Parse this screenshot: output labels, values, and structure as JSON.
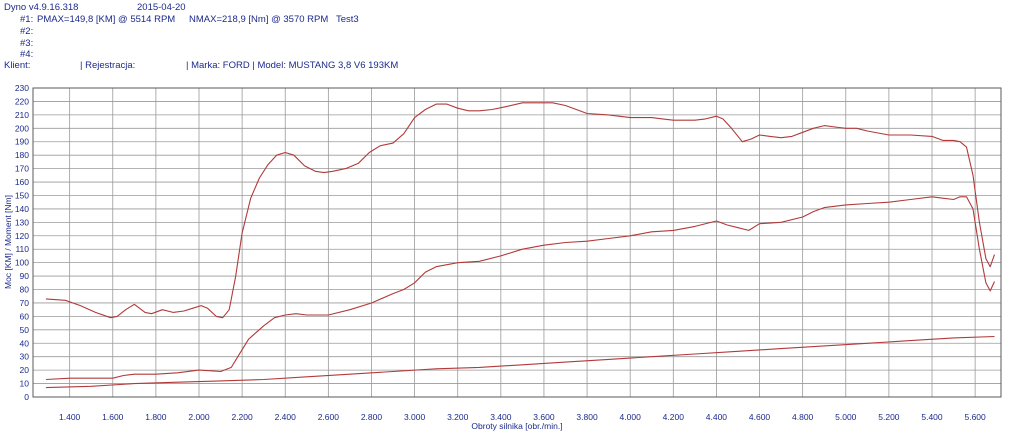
{
  "header": {
    "app_version": "Dyno v4.9.16.318",
    "date": "2015-04-20",
    "run1_label": "#1:",
    "run1_pmax": "PMAX=149,8 [KM] @ 5514 RPM",
    "run1_nmax": "NMAX=218,9 [Nm] @ 3570 RPM",
    "run1_name": "Test3",
    "run2_label": "#2:",
    "run3_label": "#3:",
    "run4_label": "#4:",
    "client_label": "Klient:",
    "registration_label": "| Rejestracja:",
    "make_model": "| Marka: FORD | Model: MUSTANG 3,8 V6 193KM"
  },
  "chart_data": {
    "type": "line",
    "title": "",
    "xlabel": "Obroty silnika [obr./min.]",
    "ylabel": "Moc [KM] / Moment [Nm]",
    "xlim": [
      1230,
      5720
    ],
    "ylim": [
      0,
      230
    ],
    "x_ticks": [
      1400,
      1600,
      1800,
      2000,
      2200,
      2400,
      2600,
      2800,
      3000,
      3200,
      3400,
      3600,
      3800,
      4000,
      4200,
      4400,
      4600,
      4800,
      5000,
      5200,
      5400,
      5600
    ],
    "x_tick_labels": [
      "1.400",
      "1.600",
      "1.800",
      "2.000",
      "2.200",
      "2.400",
      "2.600",
      "2.800",
      "3.000",
      "3.200",
      "3.400",
      "3.600",
      "3.800",
      "4.000",
      "4.200",
      "4.400",
      "4.600",
      "4.800",
      "5.000",
      "5.200",
      "5.400",
      "5.600"
    ],
    "y_ticks": [
      0,
      10,
      20,
      30,
      40,
      50,
      60,
      70,
      80,
      90,
      100,
      110,
      120,
      130,
      140,
      150,
      160,
      170,
      180,
      190,
      200,
      210,
      220,
      230
    ],
    "grid": true,
    "series_color": "#b23a3a",
    "series": [
      {
        "name": "",
        "values": [
          [
            1290,
            73
          ],
          [
            1380,
            72
          ],
          [
            1450,
            68
          ],
          [
            1520,
            63
          ],
          [
            1590,
            59
          ],
          [
            1620,
            60
          ],
          [
            1660,
            65
          ],
          [
            1700,
            69
          ],
          [
            1750,
            63
          ],
          [
            1780,
            62
          ],
          [
            1830,
            65
          ],
          [
            1880,
            63
          ],
          [
            1930,
            64
          ],
          [
            1970,
            66
          ],
          [
            2010,
            68
          ],
          [
            2040,
            66
          ],
          [
            2080,
            60
          ],
          [
            2110,
            59
          ],
          [
            2140,
            65
          ],
          [
            2170,
            90
          ],
          [
            2200,
            122
          ],
          [
            2240,
            148
          ],
          [
            2280,
            163
          ],
          [
            2320,
            173
          ],
          [
            2360,
            180
          ],
          [
            2400,
            182
          ],
          [
            2440,
            180
          ],
          [
            2490,
            172
          ],
          [
            2540,
            168
          ],
          [
            2580,
            167
          ],
          [
            2620,
            168
          ],
          [
            2680,
            170
          ],
          [
            2740,
            174
          ],
          [
            2790,
            182
          ],
          [
            2840,
            187
          ],
          [
            2900,
            189
          ],
          [
            2950,
            196
          ],
          [
            3000,
            208
          ],
          [
            3050,
            214
          ],
          [
            3100,
            218
          ],
          [
            3150,
            218
          ],
          [
            3200,
            215
          ],
          [
            3250,
            213
          ],
          [
            3300,
            213
          ],
          [
            3360,
            214
          ],
          [
            3420,
            216
          ],
          [
            3500,
            219
          ],
          [
            3570,
            219
          ],
          [
            3640,
            219
          ],
          [
            3700,
            217
          ],
          [
            3750,
            214
          ],
          [
            3800,
            211
          ],
          [
            3900,
            210
          ],
          [
            4000,
            208
          ],
          [
            4050,
            208
          ],
          [
            4100,
            208
          ],
          [
            4150,
            207
          ],
          [
            4200,
            206
          ],
          [
            4300,
            206
          ],
          [
            4350,
            207
          ],
          [
            4400,
            209
          ],
          [
            4430,
            207
          ],
          [
            4470,
            200
          ],
          [
            4520,
            190
          ],
          [
            4560,
            192
          ],
          [
            4600,
            195
          ],
          [
            4650,
            194
          ],
          [
            4700,
            193
          ],
          [
            4750,
            194
          ],
          [
            4800,
            197
          ],
          [
            4850,
            200
          ],
          [
            4900,
            202
          ],
          [
            4950,
            201
          ],
          [
            5000,
            200
          ],
          [
            5050,
            200
          ],
          [
            5100,
            198
          ],
          [
            5200,
            195
          ],
          [
            5300,
            195
          ],
          [
            5400,
            194
          ],
          [
            5450,
            191
          ],
          [
            5500,
            191
          ],
          [
            5530,
            190
          ],
          [
            5560,
            186
          ],
          [
            5590,
            165
          ],
          [
            5620,
            130
          ],
          [
            5650,
            103
          ],
          [
            5670,
            97
          ],
          [
            5690,
            106
          ]
        ]
      },
      {
        "name": "",
        "values": [
          [
            1290,
            13
          ],
          [
            1400,
            14
          ],
          [
            1500,
            14
          ],
          [
            1600,
            14
          ],
          [
            1650,
            16
          ],
          [
            1700,
            17
          ],
          [
            1800,
            17
          ],
          [
            1900,
            18
          ],
          [
            2000,
            20
          ],
          [
            2100,
            19
          ],
          [
            2150,
            22
          ],
          [
            2180,
            30
          ],
          [
            2230,
            43
          ],
          [
            2300,
            53
          ],
          [
            2350,
            59
          ],
          [
            2400,
            61
          ],
          [
            2450,
            62
          ],
          [
            2500,
            61
          ],
          [
            2600,
            61
          ],
          [
            2700,
            65
          ],
          [
            2800,
            70
          ],
          [
            2900,
            77
          ],
          [
            2950,
            80
          ],
          [
            3000,
            85
          ],
          [
            3050,
            93
          ],
          [
            3100,
            97
          ],
          [
            3200,
            100
          ],
          [
            3300,
            101
          ],
          [
            3400,
            105
          ],
          [
            3500,
            110
          ],
          [
            3600,
            113
          ],
          [
            3700,
            115
          ],
          [
            3800,
            116
          ],
          [
            3900,
            118
          ],
          [
            4000,
            120
          ],
          [
            4100,
            123
          ],
          [
            4200,
            124
          ],
          [
            4300,
            127
          ],
          [
            4400,
            131
          ],
          [
            4450,
            128
          ],
          [
            4500,
            126
          ],
          [
            4550,
            124
          ],
          [
            4600,
            129
          ],
          [
            4700,
            130
          ],
          [
            4800,
            134
          ],
          [
            4850,
            138
          ],
          [
            4900,
            141
          ],
          [
            5000,
            143
          ],
          [
            5100,
            144
          ],
          [
            5200,
            145
          ],
          [
            5300,
            147
          ],
          [
            5400,
            149
          ],
          [
            5450,
            148
          ],
          [
            5500,
            147
          ],
          [
            5530,
            149
          ],
          [
            5560,
            149
          ],
          [
            5590,
            140
          ],
          [
            5620,
            110
          ],
          [
            5650,
            85
          ],
          [
            5670,
            79
          ],
          [
            5690,
            86
          ]
        ]
      },
      {
        "name": "",
        "values": [
          [
            1290,
            7
          ],
          [
            1500,
            8
          ],
          [
            1700,
            10
          ],
          [
            1900,
            11
          ],
          [
            2100,
            12
          ],
          [
            2300,
            13
          ],
          [
            2500,
            15
          ],
          [
            2700,
            17
          ],
          [
            2900,
            19
          ],
          [
            3100,
            21
          ],
          [
            3300,
            22
          ],
          [
            3500,
            24
          ],
          [
            3700,
            26
          ],
          [
            3900,
            28
          ],
          [
            4100,
            30
          ],
          [
            4300,
            32
          ],
          [
            4500,
            34
          ],
          [
            4700,
            36
          ],
          [
            4900,
            38
          ],
          [
            5100,
            40
          ],
          [
            5300,
            42
          ],
          [
            5500,
            44
          ],
          [
            5690,
            45
          ]
        ]
      }
    ]
  }
}
